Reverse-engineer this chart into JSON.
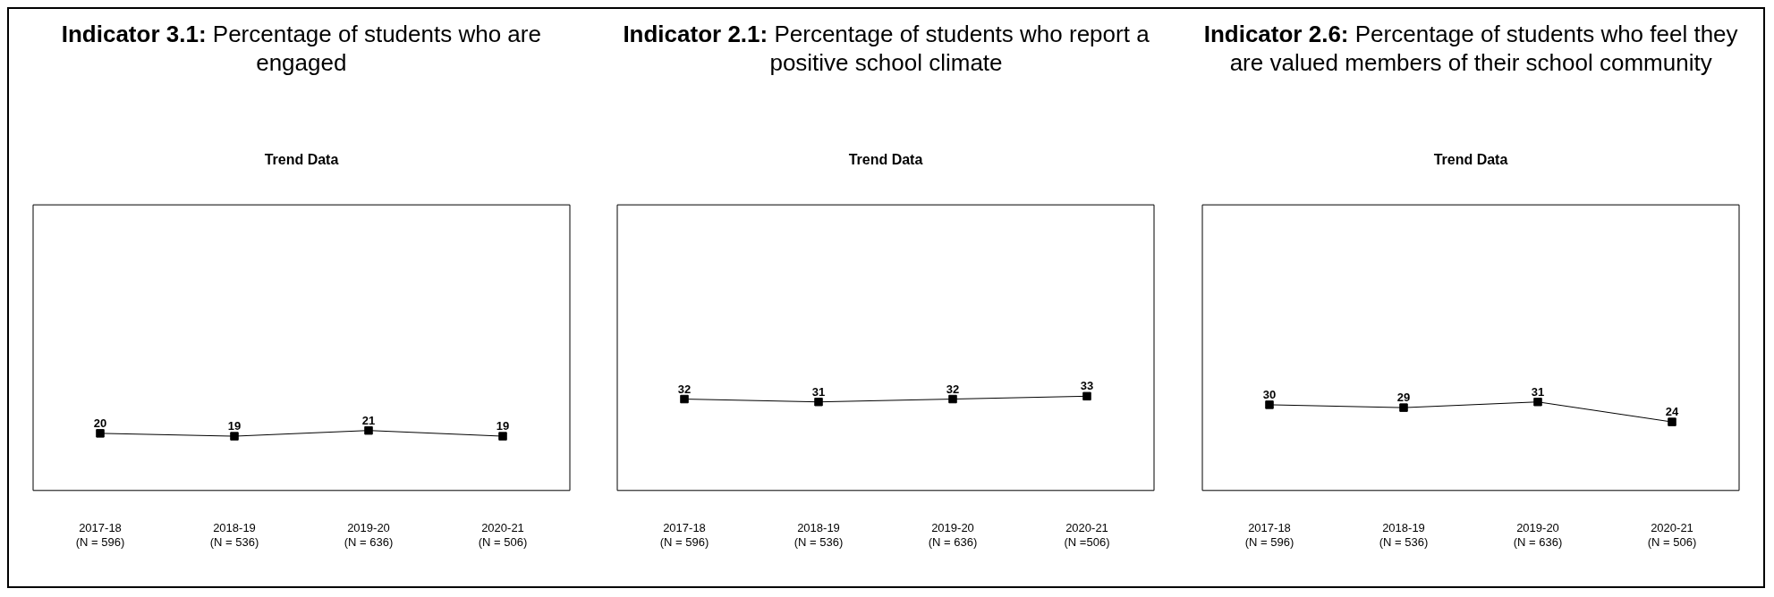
{
  "chart_data": [
    {
      "type": "line",
      "title": "Indicator 3.1:",
      "subtitle": "Percentage of students who are engaged",
      "annotations": [
        "Trend Data"
      ],
      "categories": [
        "2017-18\n(N = 596)",
        "2018-19\n(N = 536)",
        "2019-20\n(N = 636)",
        "2020-21\n(N = 506)"
      ],
      "series": [
        {
          "color": "#000000",
          "values": [
            20,
            19,
            21,
            19
          ]
        }
      ],
      "ylim": [
        0,
        100
      ],
      "tick_labels": "x",
      "data_labels": true,
      "marker": "square",
      "grid": false,
      "legend": false
    },
    {
      "type": "line",
      "title": "Indicator 2.1:",
      "subtitle": "Percentage of students who report a positive school climate",
      "annotations": [
        "Trend Data"
      ],
      "categories": [
        "2017-18\n(N = 596)",
        "2018-19\n(N = 536)",
        "2019-20\n(N = 636)",
        "2020-21\n(N =506)"
      ],
      "series": [
        {
          "color": "#000000",
          "values": [
            32,
            31,
            32,
            33
          ]
        }
      ],
      "ylim": [
        0,
        100
      ],
      "tick_labels": "x",
      "data_labels": true,
      "marker": "square",
      "grid": false,
      "legend": false
    },
    {
      "type": "line",
      "title": "Indicator 2.6:",
      "subtitle": "Percentage of students who feel they are valued members of their school community",
      "annotations": [
        "Trend Data"
      ],
      "categories": [
        "2017-18\n(N = 596)",
        "2018-19\n(N = 536)",
        "2019-20\n(N = 636)",
        "2020-21\n(N = 506)"
      ],
      "series": [
        {
          "color": "#000000",
          "values": [
            30,
            29,
            31,
            24
          ]
        }
      ],
      "ylim": [
        0,
        100
      ],
      "tick_labels": "x",
      "data_labels": true,
      "marker": "square",
      "grid": false,
      "legend": false
    }
  ]
}
